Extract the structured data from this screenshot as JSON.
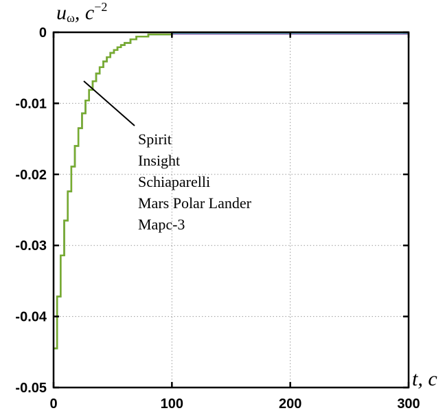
{
  "chart_data": {
    "type": "line",
    "title": "",
    "xlabel": "t, c",
    "ylabel": "uω, c⁻²",
    "xlim": [
      0,
      300
    ],
    "ylim": [
      -0.05,
      0
    ],
    "x_ticks": [
      "0",
      "100",
      "200",
      "300"
    ],
    "y_ticks": [
      "0",
      "-0.01",
      "-0.02",
      "-0.03",
      "-0.04",
      "-0.05"
    ],
    "grid": true,
    "step": true,
    "annotation_labels": [
      "Spirit",
      "Insight",
      "Schiaparelli",
      "Mars Polar Lander",
      "Марс-3"
    ],
    "series": [
      {
        "name": "Spirit",
        "color": "#7a3fb0",
        "x": [
          0,
          3,
          6,
          9,
          12,
          15,
          18,
          21,
          24,
          27,
          30,
          33,
          36,
          39,
          42,
          45,
          48,
          51,
          54,
          57,
          60,
          65,
          70,
          80,
          100,
          150,
          200,
          250,
          300
        ],
        "y": [
          -0.0445,
          -0.0372,
          -0.0314,
          -0.0265,
          -0.0224,
          -0.0189,
          -0.016,
          -0.0135,
          -0.0114,
          -0.0096,
          -0.0081,
          -0.0069,
          -0.0058,
          -0.0049,
          -0.0041,
          -0.0035,
          -0.0029,
          -0.0025,
          -0.0021,
          -0.0018,
          -0.0015,
          -0.001,
          -0.0006,
          -0.0003,
          -0.0002,
          -0.0002,
          -0.0002,
          -0.0002,
          -0.0002
        ]
      },
      {
        "name": "Insight",
        "color": "#d95319",
        "x": [
          0,
          3,
          6,
          9,
          12,
          15,
          18,
          21,
          24,
          27,
          30,
          33,
          36,
          39,
          42,
          45,
          48,
          51,
          54,
          57,
          60,
          65,
          70,
          80,
          100,
          150,
          200,
          250,
          300
        ],
        "y": [
          -0.0445,
          -0.0372,
          -0.0314,
          -0.0265,
          -0.0224,
          -0.0189,
          -0.016,
          -0.0135,
          -0.0114,
          -0.0096,
          -0.0081,
          -0.0069,
          -0.0058,
          -0.0049,
          -0.0041,
          -0.0035,
          -0.0029,
          -0.0025,
          -0.0021,
          -0.0018,
          -0.0015,
          -0.001,
          -0.0006,
          -0.0003,
          -0.0001,
          -0.0001,
          -0.0001,
          -0.0001,
          -0.0001
        ]
      },
      {
        "name": "Schiaparelli",
        "color": "#edb120",
        "x": [
          0,
          3,
          6,
          9,
          12,
          15,
          18,
          21,
          24,
          27,
          30,
          33,
          36,
          39,
          42,
          45,
          48,
          51,
          54,
          57,
          60,
          65,
          70,
          80,
          100,
          150,
          200,
          250,
          300
        ],
        "y": [
          -0.0445,
          -0.0372,
          -0.0314,
          -0.0265,
          -0.0224,
          -0.0189,
          -0.016,
          -0.0135,
          -0.0114,
          -0.0096,
          -0.0081,
          -0.0069,
          -0.0058,
          -0.0049,
          -0.0041,
          -0.0035,
          -0.0029,
          -0.0025,
          -0.0021,
          -0.0018,
          -0.0015,
          -0.001,
          -0.0006,
          -0.0003,
          -0.0001,
          -0.0001,
          -0.0001,
          -0.0001,
          -0.0001
        ]
      },
      {
        "name": "Mars Polar Lander",
        "color": "#4dbeee",
        "x": [
          0,
          3,
          6,
          9,
          12,
          15,
          18,
          21,
          24,
          27,
          30,
          33,
          36,
          39,
          42,
          45,
          48,
          51,
          54,
          57,
          60,
          65,
          70,
          80,
          100,
          150,
          200,
          250,
          300
        ],
        "y": [
          -0.0445,
          -0.0372,
          -0.0314,
          -0.0265,
          -0.0224,
          -0.0189,
          -0.016,
          -0.0135,
          -0.0114,
          -0.0096,
          -0.0081,
          -0.0069,
          -0.0058,
          -0.0049,
          -0.0041,
          -0.0035,
          -0.0029,
          -0.0025,
          -0.0021,
          -0.0018,
          -0.0015,
          -0.001,
          -0.0006,
          -0.0003,
          -0.0001,
          -0.0001,
          -0.0001,
          -0.0001,
          -0.0001
        ]
      },
      {
        "name": "Марс-3",
        "color": "#77ac30",
        "x": [
          0,
          3,
          6,
          9,
          12,
          15,
          18,
          21,
          24,
          27,
          30,
          33,
          36,
          39,
          42,
          45,
          48,
          51,
          54,
          57,
          60,
          65,
          70,
          80,
          100,
          150,
          200,
          250,
          300
        ],
        "y": [
          -0.0445,
          -0.0372,
          -0.0314,
          -0.0265,
          -0.0224,
          -0.0189,
          -0.016,
          -0.0135,
          -0.0114,
          -0.0096,
          -0.0081,
          -0.0069,
          -0.0058,
          -0.0049,
          -0.0041,
          -0.0035,
          -0.0029,
          -0.0025,
          -0.0021,
          -0.0018,
          -0.0015,
          -0.001,
          -0.0006,
          -0.0003,
          0,
          0,
          0,
          0,
          0
        ]
      }
    ]
  }
}
